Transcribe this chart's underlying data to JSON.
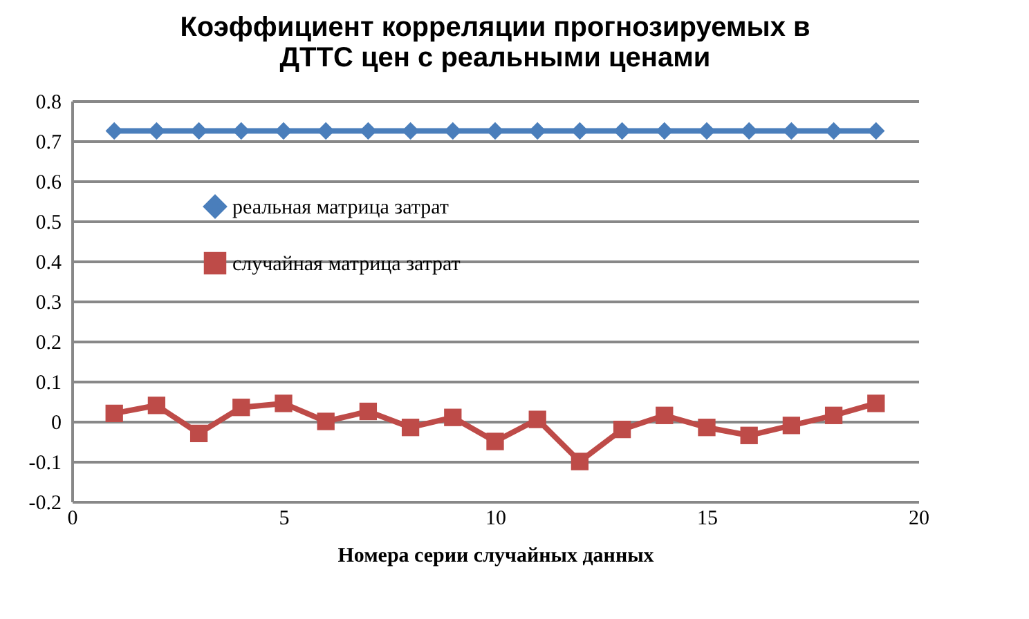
{
  "chart_data": {
    "type": "line",
    "title": [
      "Коэффициент корреляции прогнозируемых в",
      "ДТТС цен с реальными ценами"
    ],
    "xlabel": "Номера серии случайных данных",
    "x": [
      1,
      2,
      3,
      4,
      5,
      6,
      7,
      8,
      9,
      10,
      11,
      12,
      13,
      14,
      15,
      16,
      17,
      18,
      19
    ],
    "series": [
      {
        "name": "реальная матрица затрат",
        "color": "#4a7ebb",
        "marker": "diamond",
        "values": [
          0.725,
          0.725,
          0.725,
          0.725,
          0.725,
          0.725,
          0.725,
          0.725,
          0.725,
          0.725,
          0.725,
          0.725,
          0.725,
          0.725,
          0.725,
          0.725,
          0.725,
          0.725,
          0.725
        ]
      },
      {
        "name": "случайная матрица затрат",
        "color": "#be4b48",
        "marker": "square",
        "values": [
          0.02,
          0.04,
          -0.03,
          0.035,
          0.045,
          0,
          0.025,
          -0.015,
          0.01,
          -0.05,
          0.005,
          -0.1,
          -0.02,
          0.015,
          -0.015,
          -0.035,
          -0.01,
          0.015,
          0.045
        ]
      }
    ],
    "xlim": [
      0,
      20
    ],
    "xticks": [
      0,
      5,
      10,
      15,
      20
    ],
    "ylim": [
      -0.2,
      0.8
    ],
    "yticks": [
      -0.2,
      -0.1,
      0,
      0.1,
      0.2,
      0.3,
      0.4,
      0.5,
      0.6,
      0.7,
      0.8
    ],
    "grid": "y",
    "legend": "left"
  }
}
